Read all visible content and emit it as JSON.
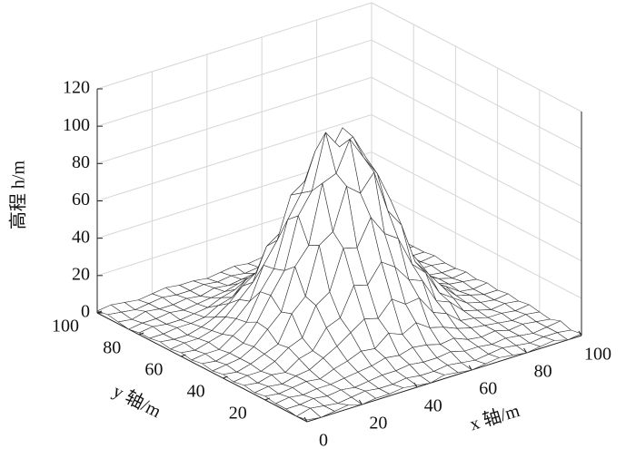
{
  "chart_data": {
    "type": "surface",
    "xlabel": "x 轴/m",
    "ylabel": "y 轴/m",
    "zlabel": "高程 h/m",
    "x": [
      0,
      5,
      10,
      15,
      20,
      25,
      30,
      35,
      40,
      45,
      50,
      55,
      60,
      65,
      70,
      75,
      80,
      85,
      90,
      95,
      100
    ],
    "y": [
      0,
      5,
      10,
      15,
      20,
      25,
      30,
      35,
      40,
      45,
      50,
      55,
      60,
      65,
      70,
      75,
      80,
      85,
      90,
      95,
      100
    ],
    "z": [
      [
        1,
        0,
        1,
        2,
        0,
        1,
        1,
        2,
        1,
        0,
        2,
        1,
        0,
        1,
        2,
        1,
        0,
        1,
        2,
        0,
        1
      ],
      [
        0,
        2,
        1,
        0,
        1,
        2,
        1,
        1,
        2,
        1,
        1,
        2,
        1,
        0,
        1,
        2,
        1,
        0,
        1,
        1,
        0
      ],
      [
        1,
        1,
        2,
        1,
        2,
        1,
        2,
        3,
        3,
        4,
        3,
        3,
        4,
        2,
        2,
        1,
        2,
        1,
        0,
        1,
        2
      ],
      [
        1,
        2,
        1,
        2,
        2,
        3,
        4,
        5,
        7,
        6,
        8,
        7,
        5,
        6,
        3,
        2,
        3,
        1,
        2,
        1,
        0
      ],
      [
        2,
        1,
        2,
        3,
        2,
        5,
        7,
        10,
        9,
        15,
        12,
        16,
        11,
        9,
        6,
        4,
        3,
        2,
        1,
        2,
        1
      ],
      [
        1,
        2,
        1,
        3,
        4,
        8,
        12,
        17,
        22,
        20,
        28,
        23,
        24,
        14,
        11,
        5,
        4,
        2,
        2,
        1,
        2
      ],
      [
        2,
        1,
        3,
        2,
        7,
        9,
        19,
        22,
        37,
        35,
        45,
        40,
        31,
        28,
        15,
        12,
        5,
        3,
        1,
        2,
        1
      ],
      [
        1,
        2,
        2,
        5,
        10,
        13,
        28,
        33,
        54,
        52,
        66,
        55,
        50,
        34,
        27,
        14,
        9,
        4,
        2,
        1,
        2
      ],
      [
        2,
        1,
        3,
        6,
        9,
        23,
        30,
        55,
        60,
        82,
        76,
        85,
        62,
        52,
        30,
        21,
        12,
        5,
        3,
        1,
        1
      ],
      [
        1,
        2,
        3,
        7,
        14,
        21,
        43,
        52,
        83,
        86,
        102,
        90,
        79,
        62,
        36,
        25,
        11,
        7,
        2,
        1,
        2
      ],
      [
        2,
        1,
        3,
        6,
        15,
        27,
        38,
        65,
        76,
        105,
        95,
        98,
        84,
        58,
        44,
        23,
        14,
        6,
        3,
        2,
        1
      ],
      [
        1,
        2,
        2,
        7,
        12,
        26,
        36,
        60,
        72,
        92,
        88,
        100,
        74,
        61,
        35,
        26,
        12,
        7,
        3,
        1,
        2
      ],
      [
        2,
        1,
        3,
        5,
        11,
        18,
        35,
        46,
        68,
        73,
        86,
        74,
        67,
        45,
        34,
        19,
        11,
        6,
        2,
        1,
        1
      ],
      [
        1,
        2,
        2,
        4,
        9,
        16,
        23,
        40,
        45,
        60,
        56,
        63,
        46,
        39,
        23,
        16,
        8,
        4,
        2,
        2,
        1
      ],
      [
        2,
        1,
        1,
        3,
        6,
        11,
        18,
        23,
        35,
        36,
        44,
        37,
        32,
        22,
        18,
        9,
        6,
        3,
        1,
        1,
        2
      ],
      [
        1,
        1,
        2,
        2,
        3,
        7,
        9,
        16,
        18,
        25,
        22,
        26,
        19,
        16,
        9,
        7,
        3,
        2,
        2,
        1,
        1
      ],
      [
        1,
        2,
        1,
        1,
        2,
        3,
        6,
        8,
        12,
        11,
        15,
        12,
        11,
        7,
        6,
        3,
        2,
        1,
        1,
        2,
        1
      ],
      [
        0,
        1,
        1,
        2,
        1,
        2,
        3,
        4,
        6,
        7,
        6,
        7,
        5,
        4,
        3,
        2,
        1,
        2,
        1,
        0,
        1
      ],
      [
        1,
        0,
        2,
        1,
        1,
        2,
        1,
        3,
        2,
        3,
        4,
        3,
        2,
        3,
        1,
        2,
        1,
        1,
        0,
        1,
        2
      ],
      [
        2,
        1,
        0,
        1,
        2,
        1,
        1,
        2,
        1,
        2,
        1,
        2,
        1,
        1,
        2,
        1,
        0,
        1,
        2,
        1,
        0
      ],
      [
        1,
        2,
        1,
        0,
        1,
        2,
        1,
        1,
        0,
        1,
        2,
        1,
        2,
        1,
        0,
        1,
        1,
        2,
        1,
        0,
        1
      ]
    ],
    "xlim": [
      0,
      100
    ],
    "ylim": [
      0,
      100
    ],
    "zlim": [
      0,
      120
    ],
    "xticks": [
      0,
      20,
      40,
      60,
      80,
      100
    ],
    "yticks": [
      20,
      40,
      60,
      80,
      100
    ],
    "zticks": [
      0,
      20,
      40,
      60,
      80,
      100,
      120
    ],
    "grid": true,
    "color": "#ffffff",
    "edgecolor": "#333333"
  }
}
